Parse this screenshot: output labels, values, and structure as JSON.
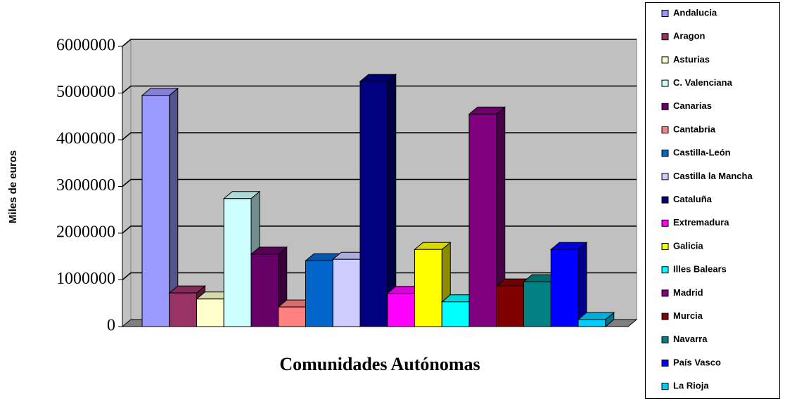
{
  "chart_data": {
    "type": "bar3d",
    "x_label": "Comunidades Autónomas",
    "y_label": "Miles de euros",
    "categories": [
      "Andalucia",
      "Aragon",
      "Asturias",
      "C. Valenciana",
      "Canarias",
      "Cantabria",
      "Castilla-León",
      "Castilla la Mancha",
      "Cataluña",
      "Extremadura",
      "Galicia",
      "Illes Balears",
      "Madrid",
      "Murcia",
      "Navarra",
      "País Vasco",
      "La Rioja"
    ],
    "values": [
      4950000,
      720000,
      590000,
      2740000,
      1550000,
      420000,
      1410000,
      1440000,
      5250000,
      710000,
      1650000,
      530000,
      4550000,
      870000,
      960000,
      1650000,
      150000
    ],
    "colors": [
      "#9999ff",
      "#993366",
      "#ffffcc",
      "#ccffff",
      "#660066",
      "#ff8080",
      "#0066cc",
      "#ccccff",
      "#000080",
      "#ff00ff",
      "#ffff00",
      "#00ffff",
      "#800080",
      "#800000",
      "#008080",
      "#0000ff",
      "#00ccff"
    ],
    "ylim": [
      0,
      6000000
    ],
    "yticks": [
      0,
      1000000,
      2000000,
      3000000,
      4000000,
      5000000,
      6000000
    ],
    "grid": true,
    "legend": "right"
  }
}
